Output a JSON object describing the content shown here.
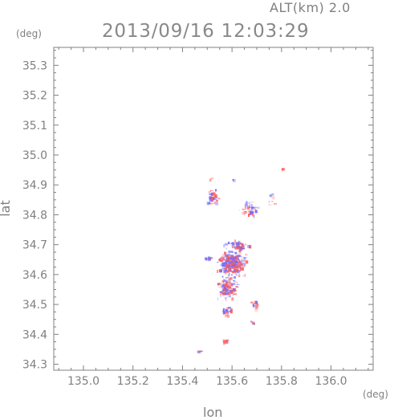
{
  "header": {
    "altitude_label": "ALT(km) 2.0",
    "timestamp": "2013/09/16 12:03:29"
  },
  "chart_data": {
    "type": "heatmap",
    "title": "2013/09/16 12:03:29",
    "xlabel": "lon",
    "ylabel": "lat",
    "x_unit": "(deg)",
    "y_unit": "(deg)",
    "xlim": [
      134.88,
      136.17
    ],
    "ylim": [
      34.28,
      35.36
    ],
    "x_ticks": [
      "135.0",
      "135.2",
      "135.4",
      "135.6",
      "135.8",
      "136.0"
    ],
    "x_tick_values": [
      135.0,
      135.2,
      135.4,
      135.6,
      135.8,
      136.0
    ],
    "y_ticks": [
      "34.3",
      "34.4",
      "34.5",
      "34.6",
      "34.7",
      "34.8",
      "34.9",
      "35.0",
      "35.1",
      "35.2",
      "35.3"
    ],
    "y_tick_values": [
      34.3,
      34.4,
      34.5,
      34.6,
      34.7,
      34.8,
      34.9,
      35.0,
      35.1,
      35.2,
      35.3
    ],
    "grid": false,
    "colors": {
      "positive": "#ff5a5a",
      "negative": "#6a6aff",
      "axis": "#808080"
    },
    "clusters": [
      {
        "lon": 135.6,
        "lat": 34.64,
        "spread_lon": 0.07,
        "spread_lat": 0.05,
        "n": 260
      },
      {
        "lon": 135.58,
        "lat": 34.56,
        "spread_lon": 0.05,
        "spread_lat": 0.05,
        "n": 120
      },
      {
        "lon": 135.62,
        "lat": 34.7,
        "spread_lon": 0.06,
        "spread_lat": 0.02,
        "n": 60
      },
      {
        "lon": 135.52,
        "lat": 34.86,
        "spread_lon": 0.03,
        "spread_lat": 0.03,
        "n": 40
      },
      {
        "lon": 135.67,
        "lat": 34.82,
        "spread_lon": 0.05,
        "spread_lat": 0.04,
        "n": 45
      },
      {
        "lon": 135.58,
        "lat": 34.48,
        "spread_lon": 0.03,
        "spread_lat": 0.02,
        "n": 30
      },
      {
        "lon": 135.69,
        "lat": 34.5,
        "spread_lon": 0.02,
        "spread_lat": 0.03,
        "n": 20
      },
      {
        "lon": 135.68,
        "lat": 34.44,
        "spread_lon": 0.01,
        "spread_lat": 0.01,
        "n": 10
      },
      {
        "lon": 135.57,
        "lat": 34.38,
        "spread_lon": 0.015,
        "spread_lat": 0.008,
        "n": 12
      },
      {
        "lon": 135.47,
        "lat": 34.345,
        "spread_lon": 0.02,
        "spread_lat": 0.003,
        "n": 8
      },
      {
        "lon": 135.5,
        "lat": 34.655,
        "spread_lon": 0.03,
        "spread_lat": 0.01,
        "n": 14
      },
      {
        "lon": 135.76,
        "lat": 34.85,
        "spread_lon": 0.02,
        "spread_lat": 0.04,
        "n": 8
      },
      {
        "lon": 135.8,
        "lat": 34.955,
        "spread_lon": 0.004,
        "spread_lat": 0.004,
        "n": 3
      },
      {
        "lon": 135.51,
        "lat": 34.92,
        "spread_lon": 0.005,
        "spread_lat": 0.004,
        "n": 3
      },
      {
        "lon": 135.6,
        "lat": 34.92,
        "spread_lon": 0.004,
        "spread_lat": 0.004,
        "n": 3
      }
    ]
  }
}
